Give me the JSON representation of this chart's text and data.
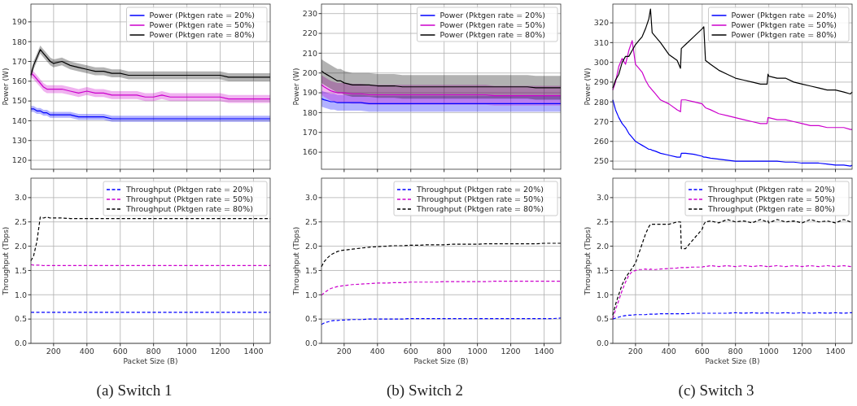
{
  "chart_data": [
    {
      "type": "line",
      "ylabel": "Power (W)",
      "x": [
        64,
        80,
        100,
        120,
        140,
        160,
        180,
        200,
        250,
        300,
        350,
        400,
        450,
        500,
        550,
        600,
        650,
        700,
        750,
        800,
        850,
        900,
        950,
        1000,
        1050,
        1100,
        1150,
        1200,
        1250,
        1300,
        1350,
        1400,
        1450,
        1500
      ],
      "xlim": [
        64,
        1500
      ],
      "xticks": [
        200,
        400,
        600,
        800,
        1000,
        1200,
        1400
      ],
      "ylim": [
        115.5,
        199
      ],
      "yticks": [
        120,
        130,
        140,
        150,
        160,
        170,
        180,
        190
      ],
      "grid": true,
      "legend": "top right",
      "tick_labels": "y",
      "line_style": "solid",
      "series": [
        {
          "name": "Power (Pktgen rate = 20%)",
          "color": "#0000ff",
          "values": [
            146,
            146,
            145,
            145,
            144,
            144,
            143,
            143,
            143,
            143,
            142,
            142,
            142,
            142,
            141,
            141,
            141,
            141,
            141,
            141,
            141,
            141,
            141,
            141,
            141,
            141,
            141,
            141,
            141,
            141,
            141,
            141,
            141,
            141
          ],
          "lower": [
            144.5,
            144.5,
            143.5,
            143.5,
            142.5,
            142.5,
            141.5,
            141.5,
            141.5,
            141.5,
            140.5,
            140.5,
            140.5,
            140.5,
            139.5,
            139.5,
            139.5,
            139.5,
            139.5,
            139.5,
            139.5,
            139.5,
            139.5,
            139.5,
            139.5,
            139.5,
            139.5,
            139.5,
            139.5,
            139.5,
            139.5,
            139.5,
            139.5,
            139.5
          ],
          "upper": [
            147.5,
            147.5,
            146.5,
            146.5,
            145.5,
            145.5,
            144.5,
            144.5,
            144.5,
            144.5,
            143.5,
            143.5,
            143.5,
            143.5,
            142.5,
            142.5,
            142.5,
            142.5,
            142.5,
            142.5,
            142.5,
            142.5,
            142.5,
            142.5,
            142.5,
            142.5,
            142.5,
            142.5,
            142.5,
            142.5,
            142.5,
            142.5,
            142.5,
            142.5
          ]
        },
        {
          "name": "Power (Pktgen rate = 50%)",
          "color": "#cc00cc",
          "values": [
            164,
            163,
            161,
            159,
            157,
            156,
            156,
            156,
            156,
            155,
            154,
            155,
            154,
            154,
            153,
            153,
            153,
            153,
            152,
            152,
            153,
            152,
            152,
            152,
            152,
            152,
            152,
            152,
            151,
            151,
            151,
            151,
            151,
            151
          ],
          "lower": [
            162,
            161,
            159,
            157,
            155,
            154,
            154,
            154,
            154,
            153,
            152,
            153,
            152,
            152,
            151,
            151,
            151,
            151,
            150,
            150,
            151,
            150,
            150,
            150,
            150,
            150,
            150,
            150,
            149,
            149,
            149,
            149,
            149,
            149
          ],
          "upper": [
            166,
            165,
            163,
            161,
            159,
            158,
            158,
            158,
            158,
            157,
            156,
            157,
            156,
            156,
            155,
            155,
            155,
            155,
            154,
            154,
            155,
            154,
            154,
            154,
            154,
            154,
            154,
            154,
            153,
            153,
            153,
            153,
            153,
            153
          ]
        },
        {
          "name": "Power (Pktgen rate = 80%)",
          "color": "#000000",
          "values": [
            163,
            168,
            172,
            176,
            174,
            172,
            170,
            169,
            170,
            168,
            167,
            166,
            165,
            165,
            164,
            164,
            163,
            163,
            163,
            163,
            163,
            163,
            163,
            163,
            163,
            163,
            163,
            163,
            162,
            162,
            162,
            162,
            162,
            162
          ],
          "lower": [
            161,
            166,
            170,
            174,
            172,
            170,
            168,
            167,
            168,
            166,
            165,
            164,
            163,
            163,
            162,
            162,
            161,
            161,
            161,
            161,
            161,
            161,
            161,
            161,
            161,
            161,
            161,
            161,
            160,
            160,
            160,
            160,
            160,
            160
          ],
          "upper": [
            165,
            170,
            174,
            178,
            176,
            174,
            172,
            171,
            172,
            170,
            169,
            168,
            167,
            167,
            166,
            166,
            165,
            165,
            165,
            165,
            165,
            165,
            165,
            165,
            165,
            165,
            165,
            165,
            164,
            164,
            164,
            164,
            164,
            164
          ]
        }
      ]
    },
    {
      "type": "line",
      "ylabel": "Power (W)",
      "x": [
        64,
        80,
        100,
        120,
        140,
        160,
        180,
        200,
        250,
        300,
        350,
        400,
        450,
        500,
        550,
        600,
        650,
        700,
        750,
        800,
        850,
        900,
        950,
        1000,
        1050,
        1100,
        1150,
        1200,
        1250,
        1300,
        1350,
        1400,
        1450,
        1500
      ],
      "xlim": [
        64,
        1500
      ],
      "xticks": [
        200,
        400,
        600,
        800,
        1000,
        1200,
        1400
      ],
      "ylim": [
        151.4,
        234.8
      ],
      "yticks": [
        160,
        170,
        180,
        190,
        200,
        210,
        220,
        230
      ],
      "grid": true,
      "legend": "top right",
      "tick_labels": "y",
      "line_style": "solid",
      "series": [
        {
          "name": "Power (Pktgen rate = 20%)",
          "color": "#0000ff",
          "values": [
            187,
            186.5,
            186,
            185.5,
            185.5,
            185,
            185,
            185,
            185,
            185,
            184.5,
            184.5,
            184.5,
            184.5,
            184.5,
            184.5,
            184.5,
            184.5,
            184.5,
            184.5,
            184.5,
            184.5,
            184.5,
            184.5,
            184.5,
            184.5,
            184.5,
            184.5,
            184.5,
            184.5,
            184.5,
            184.5,
            184.5,
            184.5
          ],
          "lower": [
            183,
            182.5,
            182,
            181.5,
            181.5,
            181,
            181,
            181,
            181,
            181,
            180.5,
            180.5,
            180.5,
            180.5,
            180.5,
            180.5,
            180.5,
            180.5,
            180.5,
            180.5,
            180.5,
            180.5,
            180.5,
            180.5,
            180.5,
            180.5,
            180.5,
            180.5,
            180.5,
            180.5,
            180.5,
            180.5,
            180.5,
            180.5
          ],
          "upper": [
            191,
            190.5,
            190,
            189.5,
            189.5,
            189,
            189,
            189,
            189,
            189,
            188.5,
            188.5,
            188.5,
            188.5,
            188.5,
            188.5,
            188.5,
            188.5,
            188.5,
            188.5,
            188.5,
            188.5,
            188.5,
            188.5,
            188.5,
            188.5,
            188.5,
            188.5,
            188.5,
            188.5,
            188.5,
            188.5,
            188.5,
            188.5
          ]
        },
        {
          "name": "Power (Pktgen rate = 50%)",
          "color": "#cc00cc",
          "values": [
            194,
            193,
            192,
            191,
            190.5,
            190,
            190,
            190,
            189.5,
            189.5,
            189,
            189,
            189,
            189,
            189,
            189,
            189,
            189,
            189,
            189,
            189,
            189,
            189,
            189,
            189,
            188.5,
            188.5,
            188.5,
            188.5,
            188.5,
            188.5,
            188.5,
            188.5,
            188.5
          ],
          "lower": [
            189,
            188,
            187,
            186,
            185.5,
            185,
            185,
            185,
            184.5,
            184.5,
            184,
            184,
            184,
            184,
            184,
            184,
            184,
            184,
            184,
            184,
            184,
            184,
            184,
            184,
            184,
            183.5,
            183.5,
            183.5,
            183.5,
            183.5,
            183.5,
            183.5,
            183.5,
            183.5
          ],
          "upper": [
            199,
            198,
            197,
            196,
            195.5,
            195,
            195,
            195,
            194.5,
            194.5,
            194,
            194,
            194,
            194,
            194,
            194,
            194,
            194,
            194,
            194,
            194,
            194,
            194,
            194,
            194,
            193.5,
            193.5,
            193.5,
            193.5,
            193.5,
            193.5,
            193.5,
            193.5,
            193.5
          ]
        },
        {
          "name": "Power (Pktgen rate = 80%)",
          "color": "#000000",
          "values": [
            201,
            200,
            199,
            198,
            197,
            196,
            196,
            195,
            194,
            194,
            194,
            193.5,
            193.5,
            193.5,
            193,
            193,
            193,
            193,
            193,
            193,
            193,
            193,
            193,
            193,
            193,
            193,
            193,
            193,
            193,
            193,
            192.5,
            192.5,
            192.5,
            192.5
          ],
          "lower": [
            195,
            194,
            193,
            192,
            191,
            190,
            190,
            189,
            188,
            188,
            188,
            187.5,
            187.5,
            187.5,
            187,
            187,
            187,
            187,
            187,
            187,
            187,
            187,
            187,
            187,
            187,
            187,
            187,
            187,
            187,
            187,
            186.5,
            186.5,
            186.5,
            186.5
          ],
          "upper": [
            207,
            206,
            205,
            204,
            203,
            202,
            202,
            201,
            200,
            200,
            200,
            199.5,
            199.5,
            199.5,
            199,
            199,
            199,
            199,
            199,
            199,
            199,
            199,
            199,
            199,
            199,
            199,
            199,
            199,
            199,
            199,
            198.5,
            198.5,
            198.5,
            198.5
          ]
        }
      ]
    },
    {
      "type": "line",
      "ylabel": "Power (W)",
      "x": [
        64,
        80,
        100,
        120,
        140,
        160,
        180,
        200,
        220,
        240,
        260,
        280,
        290,
        300,
        320,
        350,
        400,
        450,
        470,
        475,
        500,
        550,
        600,
        610,
        620,
        650,
        700,
        750,
        800,
        850,
        900,
        950,
        990,
        995,
        1000,
        1050,
        1100,
        1150,
        1200,
        1250,
        1300,
        1350,
        1400,
        1450,
        1490,
        1500
      ],
      "xlim": [
        64,
        1500
      ],
      "xticks": [
        200,
        400,
        600,
        800,
        1000,
        1200,
        1400
      ],
      "ylim": [
        245.9,
        329.5
      ],
      "yticks": [
        250,
        260,
        270,
        280,
        290,
        300,
        310,
        320
      ],
      "grid": true,
      "legend": "top right",
      "tick_labels": "y",
      "line_style": "solid",
      "series": [
        {
          "name": "Power (Pktgen rate = 20%)",
          "color": "#0000ff",
          "values": [
            281,
            276,
            272,
            269,
            267,
            264,
            262,
            260,
            259,
            258,
            257,
            256,
            256,
            255.5,
            255,
            254,
            253,
            252,
            252,
            254,
            254,
            253.5,
            252.5,
            252,
            252,
            251.5,
            251,
            250.5,
            250,
            250,
            250,
            250,
            250,
            250,
            250,
            250,
            249.5,
            249.5,
            249,
            249,
            249,
            248.5,
            248,
            248,
            247.5,
            248
          ]
        },
        {
          "name": "Power (Pktgen rate = 50%)",
          "color": "#cc00cc",
          "values": [
            286,
            290,
            298,
            302,
            299,
            306,
            311,
            299,
            297,
            295,
            291,
            288,
            287,
            286,
            284,
            281,
            279,
            276,
            275,
            281,
            281,
            280,
            279,
            278,
            277,
            276,
            274,
            273,
            272,
            271,
            270,
            269,
            269,
            272,
            272,
            271,
            271,
            270,
            269,
            268,
            268,
            267,
            267,
            267,
            266,
            266
          ]
        },
        {
          "name": "Power (Pktgen rate = 80%)",
          "color": "#000000",
          "values": [
            287,
            291,
            294,
            300,
            303,
            303,
            306,
            309,
            311,
            313,
            317,
            322,
            327,
            315,
            313,
            310,
            304,
            301,
            297,
            307,
            309,
            313,
            317,
            318,
            301,
            299,
            296,
            294,
            292,
            291,
            290,
            289,
            289,
            294,
            293,
            292,
            292,
            290,
            289,
            288,
            287,
            286,
            286,
            285,
            284,
            285
          ]
        }
      ]
    },
    {
      "type": "line",
      "xlabel": "Packet Size (B)",
      "ylabel": "Throughput (Tbps)",
      "annotations": [
        "(a) Switch 1"
      ],
      "x": [
        64,
        80,
        100,
        120,
        140,
        160,
        180,
        200,
        250,
        300,
        350,
        400,
        450,
        500,
        550,
        600,
        650,
        700,
        750,
        800,
        850,
        900,
        950,
        1000,
        1050,
        1100,
        1150,
        1200,
        1250,
        1300,
        1350,
        1400,
        1450,
        1500
      ],
      "xlim": [
        64,
        1500
      ],
      "xticks": [
        200,
        400,
        600,
        800,
        1000,
        1200,
        1400
      ],
      "ylim": [
        0,
        3.4
      ],
      "yticks": [
        {
          "value": 0,
          "label": "0.0"
        },
        0.5,
        {
          "value": 1,
          "label": "1.0"
        },
        1.5,
        {
          "value": 2,
          "label": "2.0"
        },
        2.5,
        {
          "value": 3,
          "label": "3.0"
        }
      ],
      "grid": true,
      "legend": "top right",
      "line_style": "dashed",
      "series": [
        {
          "name": "Throughput (Pktgen rate = 20%)",
          "color": "#0000ff",
          "values": [
            0.64,
            0.64,
            0.64,
            0.64,
            0.64,
            0.64,
            0.64,
            0.64,
            0.64,
            0.64,
            0.64,
            0.64,
            0.64,
            0.64,
            0.64,
            0.64,
            0.64,
            0.64,
            0.64,
            0.64,
            0.64,
            0.64,
            0.64,
            0.64,
            0.64,
            0.64,
            0.64,
            0.64,
            0.64,
            0.64,
            0.64,
            0.64,
            0.64,
            0.64
          ]
        },
        {
          "name": "Throughput (Pktgen rate = 50%)",
          "color": "#cc00cc",
          "values": [
            1.62,
            1.61,
            1.61,
            1.61,
            1.6,
            1.6,
            1.6,
            1.6,
            1.6,
            1.6,
            1.6,
            1.6,
            1.6,
            1.6,
            1.6,
            1.6,
            1.6,
            1.6,
            1.6,
            1.6,
            1.6,
            1.6,
            1.6,
            1.6,
            1.6,
            1.6,
            1.6,
            1.6,
            1.6,
            1.6,
            1.6,
            1.6,
            1.6,
            1.6
          ]
        },
        {
          "name": "Throughput (Pktgen rate = 80%)",
          "color": "#000000",
          "values": [
            1.7,
            1.8,
            2.1,
            2.6,
            2.58,
            2.6,
            2.58,
            2.58,
            2.58,
            2.57,
            2.57,
            2.57,
            2.57,
            2.57,
            2.57,
            2.57,
            2.57,
            2.57,
            2.57,
            2.57,
            2.57,
            2.57,
            2.57,
            2.57,
            2.57,
            2.57,
            2.57,
            2.57,
            2.57,
            2.57,
            2.57,
            2.57,
            2.57,
            2.57
          ]
        }
      ]
    },
    {
      "type": "line",
      "xlabel": "Packet Size (B)",
      "ylabel": "Throughput (Tbps)",
      "annotations": [
        "(b) Switch 2"
      ],
      "x": [
        64,
        80,
        100,
        120,
        140,
        160,
        180,
        200,
        250,
        300,
        350,
        400,
        450,
        500,
        550,
        600,
        650,
        700,
        750,
        800,
        850,
        900,
        950,
        1000,
        1050,
        1100,
        1150,
        1200,
        1250,
        1300,
        1350,
        1400,
        1450,
        1500
      ],
      "xlim": [
        64,
        1500
      ],
      "xticks": [
        200,
        400,
        600,
        800,
        1000,
        1200,
        1400
      ],
      "ylim": [
        0,
        3.4
      ],
      "yticks": [
        {
          "value": 0,
          "label": "0.0"
        },
        0.5,
        {
          "value": 1,
          "label": "1.0"
        },
        1.5,
        {
          "value": 2,
          "label": "2.0"
        },
        2.5,
        {
          "value": 3,
          "label": "3.0"
        }
      ],
      "grid": true,
      "legend": "top right",
      "line_style": "dashed",
      "series": [
        {
          "name": "Throughput (Pktgen rate = 20%)",
          "color": "#0000ff",
          "values": [
            0.39,
            0.42,
            0.44,
            0.46,
            0.47,
            0.47,
            0.48,
            0.48,
            0.49,
            0.49,
            0.5,
            0.5,
            0.5,
            0.5,
            0.5,
            0.51,
            0.51,
            0.51,
            0.51,
            0.51,
            0.51,
            0.51,
            0.51,
            0.51,
            0.51,
            0.51,
            0.51,
            0.51,
            0.51,
            0.51,
            0.51,
            0.51,
            0.51,
            0.52
          ]
        },
        {
          "name": "Throughput (Pktgen rate = 50%)",
          "color": "#cc00cc",
          "values": [
            0.99,
            1.04,
            1.09,
            1.13,
            1.15,
            1.17,
            1.18,
            1.19,
            1.21,
            1.22,
            1.23,
            1.24,
            1.24,
            1.25,
            1.25,
            1.26,
            1.26,
            1.26,
            1.26,
            1.27,
            1.27,
            1.27,
            1.27,
            1.27,
            1.27,
            1.28,
            1.28,
            1.28,
            1.28,
            1.28,
            1.28,
            1.28,
            1.28,
            1.28
          ]
        },
        {
          "name": "Throughput (Pktgen rate = 80%)",
          "color": "#000000",
          "values": [
            1.58,
            1.68,
            1.76,
            1.82,
            1.86,
            1.89,
            1.91,
            1.92,
            1.94,
            1.96,
            1.98,
            1.99,
            2.0,
            2.01,
            2.01,
            2.02,
            2.02,
            2.03,
            2.03,
            2.03,
            2.04,
            2.04,
            2.04,
            2.04,
            2.05,
            2.05,
            2.05,
            2.05,
            2.05,
            2.05,
            2.05,
            2.06,
            2.06,
            2.06
          ]
        }
      ]
    },
    {
      "type": "line",
      "xlabel": "Packet Size (B)",
      "ylabel": "Throughput (Tbps)",
      "annotations": [
        "(c) Switch 3"
      ],
      "x": [
        64,
        80,
        100,
        120,
        140,
        160,
        180,
        200,
        220,
        240,
        260,
        280,
        290,
        300,
        320,
        350,
        400,
        450,
        470,
        475,
        500,
        550,
        600,
        610,
        620,
        650,
        700,
        750,
        800,
        850,
        900,
        950,
        990,
        995,
        1000,
        1050,
        1100,
        1150,
        1200,
        1250,
        1300,
        1350,
        1400,
        1450,
        1490,
        1500
      ],
      "xlim": [
        64,
        1500
      ],
      "xticks": [
        200,
        400,
        600,
        800,
        1000,
        1200,
        1400
      ],
      "ylim": [
        0,
        3.4
      ],
      "yticks": [
        {
          "value": 0,
          "label": "0.0"
        },
        0.5,
        {
          "value": 1,
          "label": "1.0"
        },
        1.5,
        {
          "value": 2,
          "label": "2.0"
        },
        2.5,
        {
          "value": 3,
          "label": "3.0"
        }
      ],
      "grid": true,
      "legend": "top right",
      "line_style": "dashed",
      "series": [
        {
          "name": "Throughput (Pktgen rate = 20%)",
          "color": "#0000ff",
          "values": [
            0.5,
            0.52,
            0.54,
            0.56,
            0.57,
            0.58,
            0.58,
            0.59,
            0.59,
            0.59,
            0.59,
            0.6,
            0.6,
            0.6,
            0.6,
            0.61,
            0.61,
            0.61,
            0.61,
            0.61,
            0.61,
            0.62,
            0.62,
            0.62,
            0.62,
            0.62,
            0.62,
            0.62,
            0.63,
            0.62,
            0.63,
            0.62,
            0.63,
            0.62,
            0.63,
            0.62,
            0.63,
            0.62,
            0.63,
            0.62,
            0.63,
            0.62,
            0.63,
            0.62,
            0.63,
            0.63
          ]
        },
        {
          "name": "Throughput (Pktgen rate = 50%)",
          "color": "#cc00cc",
          "values": [
            0.51,
            0.69,
            0.89,
            1.09,
            1.26,
            1.4,
            1.48,
            1.5,
            1.52,
            1.52,
            1.53,
            1.51,
            1.53,
            1.52,
            1.52,
            1.53,
            1.54,
            1.55,
            1.56,
            1.56,
            1.56,
            1.57,
            1.57,
            1.58,
            1.58,
            1.6,
            1.58,
            1.6,
            1.58,
            1.6,
            1.58,
            1.6,
            1.58,
            1.6,
            1.58,
            1.6,
            1.58,
            1.6,
            1.58,
            1.6,
            1.58,
            1.6,
            1.58,
            1.6,
            1.58,
            1.6
          ]
        },
        {
          "name": "Throughput (Pktgen rate = 80%)",
          "color": "#000000",
          "values": [
            0.58,
            0.8,
            1.01,
            1.21,
            1.35,
            1.45,
            1.55,
            1.65,
            1.85,
            2.05,
            2.25,
            2.4,
            2.45,
            2.45,
            2.45,
            2.45,
            2.45,
            2.5,
            2.5,
            1.95,
            1.95,
            2.15,
            2.35,
            2.45,
            2.5,
            2.52,
            2.48,
            2.55,
            2.5,
            2.52,
            2.48,
            2.55,
            2.5,
            2.52,
            2.48,
            2.55,
            2.5,
            2.52,
            2.48,
            2.55,
            2.5,
            2.52,
            2.48,
            2.55,
            2.5,
            2.52
          ]
        }
      ]
    }
  ]
}
